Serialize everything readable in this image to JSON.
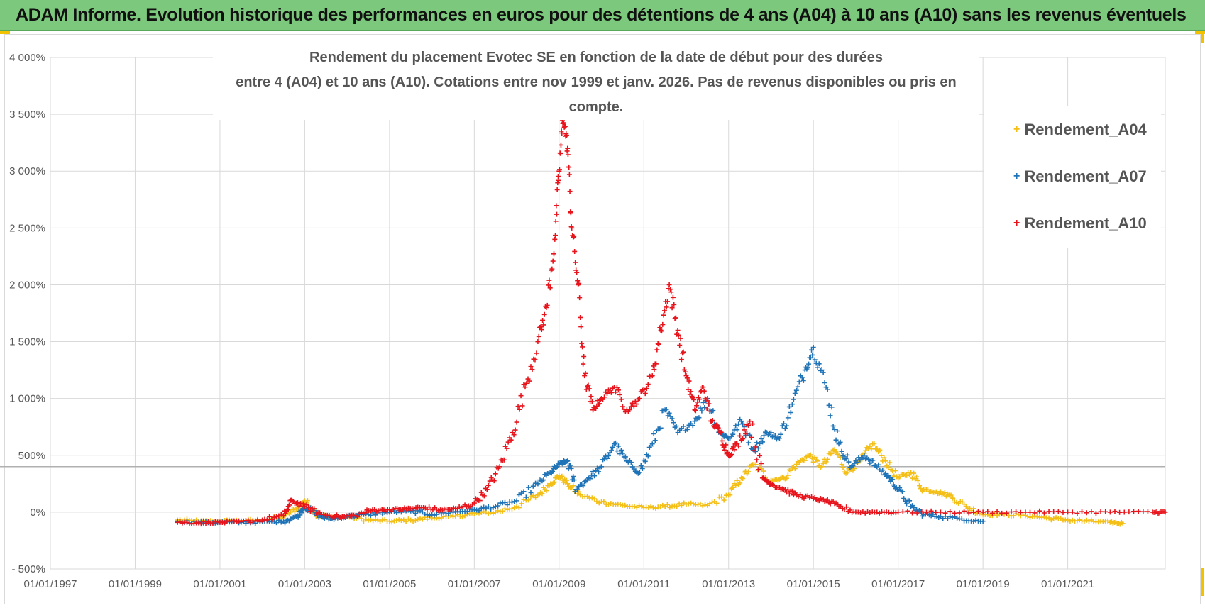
{
  "header": {
    "title": "ADAM Informe. Evolution historique des performances en euros pour des détentions de 4 ans (A04) à 10 ans (A10) sans les revenus éventuels"
  },
  "chart_data": {
    "type": "scatter",
    "title_line1": "Rendement du placement Evotec SE en fonction de la date de début pour des durées",
    "title_line2": "entre 4 (A04) et 10 ans (A10).  Cotations entre nov 1999 et janv. 2026. Pas de revenus disponibles ou pris en compte.",
    "xlabel": "",
    "ylabel": "",
    "x_tick_labels": [
      "01/01/1997",
      "01/01/1999",
      "01/01/2001",
      "01/01/2003",
      "01/01/2005",
      "01/01/2007",
      "01/01/2009",
      "01/01/2011",
      "01/01/2013",
      "01/01/2015",
      "01/01/2017",
      "01/01/2019",
      "01/01/2021"
    ],
    "xlim": [
      1997.0,
      2023.3
    ],
    "y_tick_labels": [
      "4 000%",
      "3 500%",
      "3 000%",
      "2 500%",
      "2 000%",
      "1 500%",
      "1 000%",
      "500%",
      "0%",
      "- 500%"
    ],
    "y_tick_values": [
      4000,
      3500,
      3000,
      2500,
      2000,
      1500,
      1000,
      500,
      0,
      -500
    ],
    "ylim": [
      -500,
      4000
    ],
    "reference_line": 400,
    "legend_position": "top-right",
    "series": [
      {
        "name": "Rendement_A04",
        "color": "#f4bf17",
        "x": [
          2000.0,
          2000.5,
          2001.0,
          2001.5,
          2002.0,
          2002.5,
          2002.8,
          2003.0,
          2003.3,
          2003.6,
          2004.0,
          2004.5,
          2005.0,
          2005.5,
          2006.0,
          2006.5,
          2007.0,
          2007.5,
          2008.0,
          2008.5,
          2008.8,
          2009.0,
          2009.2,
          2009.5,
          2010.0,
          2010.5,
          2011.0,
          2011.5,
          2012.0,
          2012.5,
          2013.0,
          2013.3,
          2013.6,
          2014.0,
          2014.3,
          2014.6,
          2014.9,
          2015.2,
          2015.5,
          2015.8,
          2016.1,
          2016.4,
          2016.7,
          2017.0,
          2017.3,
          2017.6,
          2017.9,
          2018.2,
          2018.6,
          2019.0,
          2019.5,
          2020.0,
          2020.5,
          2021.0,
          2021.5,
          2022.0,
          2022.3
        ],
        "y": [
          -70,
          -80,
          -80,
          -75,
          -70,
          -40,
          30,
          100,
          -20,
          -50,
          -40,
          -70,
          -80,
          -70,
          -50,
          -40,
          -10,
          0,
          50,
          150,
          250,
          320,
          250,
          150,
          90,
          60,
          40,
          50,
          70,
          60,
          150,
          300,
          420,
          280,
          300,
          420,
          500,
          400,
          550,
          350,
          450,
          600,
          450,
          300,
          350,
          200,
          180,
          150,
          50,
          -20,
          -20,
          -30,
          -50,
          -70,
          -80,
          -90,
          -100
        ]
      },
      {
        "name": "Rendement_A07",
        "color": "#1f73b7",
        "x": [
          2000.0,
          2000.5,
          2001.0,
          2001.5,
          2002.0,
          2002.5,
          2002.8,
          2003.0,
          2003.3,
          2003.6,
          2004.0,
          2004.5,
          2005.0,
          2005.5,
          2006.0,
          2006.5,
          2007.0,
          2007.5,
          2008.0,
          2008.5,
          2008.8,
          2009.0,
          2009.2,
          2009.4,
          2009.7,
          2010.0,
          2010.3,
          2010.6,
          2010.9,
          2011.2,
          2011.5,
          2011.8,
          2012.2,
          2012.5,
          2012.8,
          2013.0,
          2013.3,
          2013.6,
          2013.9,
          2014.2,
          2014.5,
          2014.8,
          2015.0,
          2015.3,
          2015.6,
          2015.9,
          2016.2,
          2016.5,
          2016.8,
          2017.0,
          2017.3,
          2017.6,
          2018.0,
          2018.5,
          2019.0
        ],
        "y": [
          -80,
          -90,
          -90,
          -90,
          -85,
          -80,
          -40,
          50,
          -30,
          -60,
          -40,
          -20,
          0,
          10,
          -20,
          0,
          20,
          50,
          100,
          250,
          350,
          420,
          450,
          200,
          300,
          400,
          600,
          450,
          350,
          600,
          900,
          700,
          800,
          1000,
          700,
          650,
          800,
          550,
          700,
          650,
          950,
          1250,
          1450,
          1100,
          600,
          400,
          500,
          400,
          300,
          200,
          50,
          -20,
          -40,
          -60,
          -80
        ]
      },
      {
        "name": "Rendement_A10",
        "color": "#e8141c",
        "x": [
          2000.0,
          2000.5,
          2001.0,
          2001.5,
          2002.0,
          2002.5,
          2002.7,
          2003.0,
          2003.4,
          2003.8,
          2004.2,
          2004.6,
          2005.0,
          2005.4,
          2005.8,
          2006.2,
          2006.6,
          2007.0,
          2007.3,
          2007.6,
          2007.9,
          2008.2,
          2008.5,
          2008.7,
          2008.9,
          2009.0,
          2009.1,
          2009.2,
          2009.3,
          2009.45,
          2009.6,
          2009.8,
          2010.0,
          2010.3,
          2010.6,
          2010.9,
          2011.2,
          2011.4,
          2011.6,
          2011.8,
          2012.0,
          2012.2,
          2012.4,
          2012.6,
          2012.8,
          2013.0,
          2013.2,
          2013.5,
          2013.8,
          2014.0,
          2014.3,
          2014.6,
          2015.0,
          2015.3,
          2015.6,
          2016.0,
          2016.5,
          2017.0,
          2018.0,
          2019.0,
          2020.0,
          2021.0,
          2022.0,
          2023.0,
          2023.3
        ],
        "y": [
          -90,
          -95,
          -90,
          -85,
          -70,
          -30,
          100,
          50,
          -20,
          -40,
          -30,
          20,
          20,
          30,
          40,
          20,
          30,
          80,
          200,
          400,
          700,
          1100,
          1500,
          1800,
          2400,
          3000,
          3500,
          3200,
          2500,
          2000,
          1200,
          900,
          1000,
          1100,
          900,
          1000,
          1200,
          1600,
          2000,
          1600,
          1200,
          900,
          1100,
          800,
          700,
          500,
          600,
          800,
          300,
          250,
          200,
          150,
          120,
          100,
          50,
          0,
          0,
          0,
          0,
          0,
          0,
          0,
          0,
          0,
          0
        ]
      }
    ]
  }
}
